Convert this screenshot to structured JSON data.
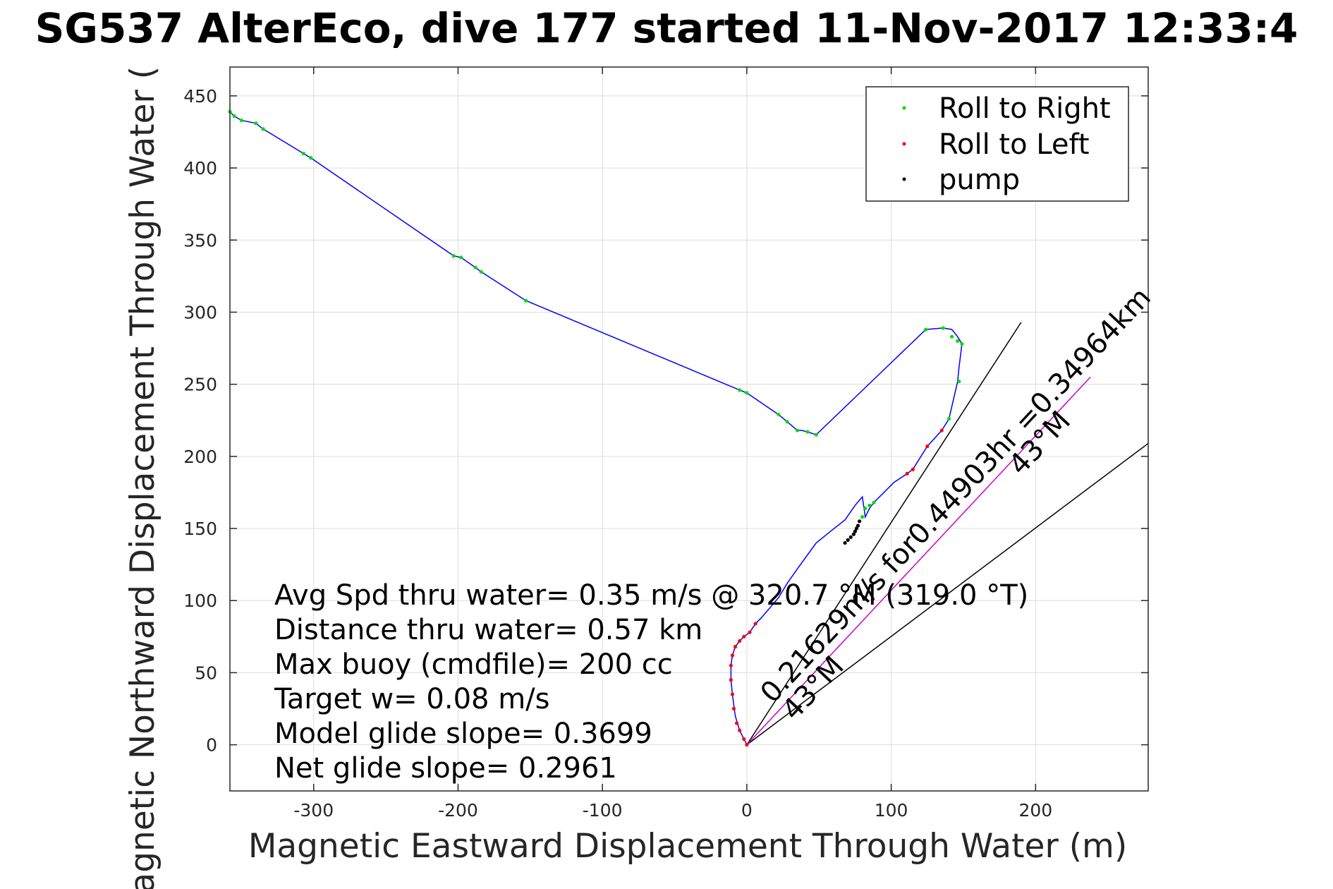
{
  "chart_data": {
    "type": "line",
    "title": "SG537 AlterEco, dive 177 started 11-Nov-2017 12:33:4",
    "xlabel": "Magnetic Eastward Displacement Through Water (m)",
    "ylabel": "Magnetic Northward Displacement Through Water (",
    "xlim": [
      -358,
      278
    ],
    "ylim": [
      -32,
      470
    ],
    "xticks": [
      -300,
      -200,
      -100,
      0,
      100,
      200
    ],
    "xtick_labels": [
      "-300",
      "-200",
      "-100",
      "0",
      "100",
      "200"
    ],
    "yticks": [
      0,
      50,
      100,
      150,
      200,
      250,
      300,
      350,
      400,
      450
    ],
    "ytick_labels": [
      "0",
      "50",
      "100",
      "150",
      "200",
      "250",
      "300",
      "350",
      "400",
      "450"
    ],
    "grid": true,
    "legend_position": "top-right",
    "legend": [
      "Roll to Right",
      "Roll to Left",
      "pump"
    ],
    "colors": {
      "track": "#0000ff",
      "roll_right": "#00dd00",
      "roll_left": "#ff0000",
      "pump": "#000000",
      "magenta_line": "#cc00cc",
      "wedge": "#000000"
    },
    "track": {
      "x": [
        0,
        -2,
        -5,
        -8,
        -10,
        -11,
        -11,
        -10,
        -8,
        -5,
        -2,
        2,
        6,
        10,
        22,
        28,
        35,
        48,
        58,
        68,
        75,
        80,
        82,
        85,
        88,
        102,
        111,
        115,
        125,
        135,
        140,
        146,
        147,
        148,
        149,
        146,
        142,
        136,
        124,
        48,
        42,
        38,
        35,
        28,
        22,
        0,
        -5,
        -153,
        -184,
        -188,
        -198,
        -203,
        -302,
        -307,
        -335,
        -340,
        -350,
        -355,
        -358
      ],
      "y": [
        0,
        4,
        10,
        20,
        35,
        45,
        55,
        62,
        68,
        72,
        75,
        78,
        84,
        88,
        102,
        112,
        122,
        140,
        148,
        156,
        166,
        172,
        158,
        164,
        168,
        182,
        188,
        191,
        207,
        218,
        226,
        252,
        262,
        270,
        278,
        283,
        288,
        289,
        288,
        215,
        217,
        218,
        218,
        224,
        229,
        244,
        246,
        308,
        328,
        331,
        338,
        339,
        407,
        410,
        427,
        431,
        433,
        436,
        439
      ]
    },
    "roll_right_points": {
      "x": [
        -358,
        -355,
        -350,
        -340,
        -335,
        -307,
        -302,
        -203,
        -198,
        -188,
        -184,
        -153,
        -5,
        0,
        22,
        28,
        35,
        42,
        48,
        80,
        82,
        85,
        88,
        124,
        136,
        142,
        146,
        149,
        147,
        140
      ],
      "y": [
        439,
        436,
        433,
        431,
        427,
        410,
        407,
        339,
        338,
        331,
        328,
        308,
        246,
        244,
        229,
        224,
        218,
        217,
        215,
        158,
        164,
        166,
        168,
        288,
        289,
        283,
        280,
        278,
        252,
        226
      ]
    },
    "roll_left_points": {
      "x": [
        0,
        -2,
        -5,
        -7,
        -9,
        -10,
        -11,
        -11,
        -10,
        -8,
        -5,
        -2,
        2,
        6,
        111,
        115,
        125,
        135
      ],
      "y": [
        0,
        4,
        10,
        15,
        25,
        35,
        45,
        55,
        62,
        68,
        72,
        75,
        78,
        84,
        188,
        191,
        207,
        218
      ]
    },
    "pump_points": {
      "x": [
        68,
        70,
        72,
        74,
        75,
        76,
        77,
        78
      ],
      "y": [
        140,
        142,
        144,
        146,
        148,
        150,
        152,
        155
      ]
    },
    "magenta_line": {
      "x": [
        0,
        238
      ],
      "y": [
        0,
        255
      ]
    },
    "wedge_lines": [
      {
        "x": [
          0,
          190
        ],
        "y": [
          0,
          293
        ]
      },
      {
        "x": [
          0,
          278
        ],
        "y": [
          0,
          209
        ]
      }
    ],
    "info_lines": [
      "Avg Spd thru water=  0.35 m/s @ 320.7 °M (319.0 °T)",
      "Distance thru water=  0.57 km",
      "Max buoy (cmdfile)= 200 cc",
      "Target w= 0.08 m/s",
      "Model glide slope= 0.3699",
      "Net glide slope= 0.2961"
    ],
    "annotations": [
      {
        "text": "0.21629m/s for0.44903hr =0.34964km",
        "x": 18,
        "y": 28
      },
      {
        "text": "43°M",
        "x": 190,
        "y": 186
      },
      {
        "text": "43°M",
        "x": 33,
        "y": 16
      }
    ]
  }
}
